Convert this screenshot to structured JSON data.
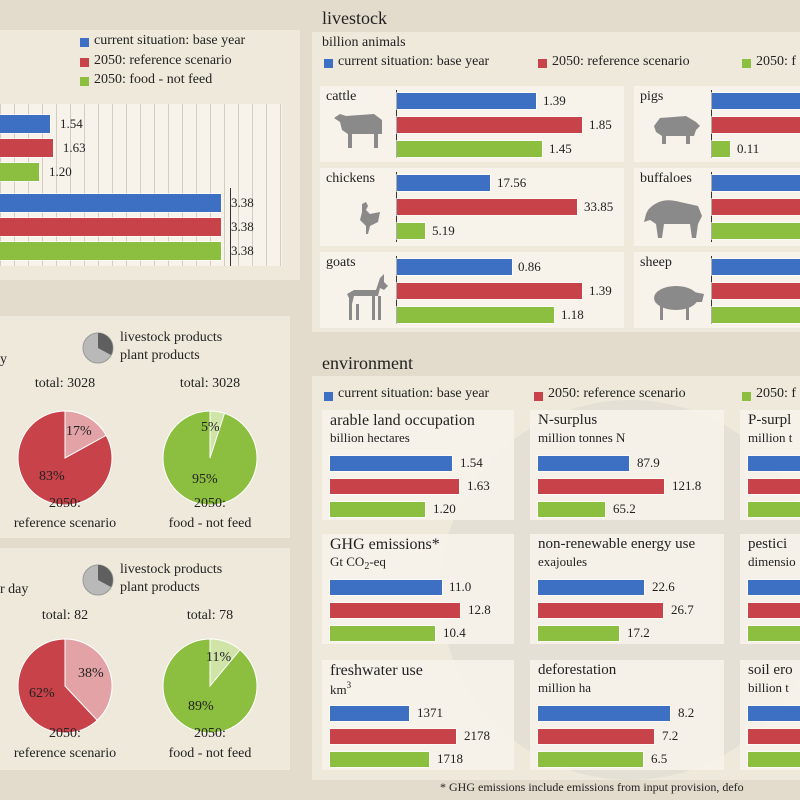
{
  "colors": {
    "blue": "#3d6fc2",
    "red": "#c8424a",
    "green": "#8cbe3f",
    "lightred": "#e3a3a6",
    "lightgreen": "#cfe4a6",
    "dark": "#5f5f5f",
    "light": "#b9b9b9"
  },
  "legend": {
    "base": "current situation: base year",
    "ref": "2050: reference scenario",
    "food": "2050: food - not feed",
    "food_cut": "2050: f"
  },
  "land": {
    "rows": [
      {
        "value": 1.54,
        "label": "1.54"
      },
      {
        "value": 1.63,
        "label": "1.63"
      },
      {
        "value": 1.2,
        "label": "1.20"
      },
      {
        "value": 3.38,
        "label": "3.38"
      },
      {
        "value": 3.38,
        "label": "3.38"
      },
      {
        "value": 3.38,
        "label": "3.38"
      }
    ]
  },
  "livestock": {
    "title": "livestock",
    "unit": "billion animals",
    "animals": [
      {
        "name": "cattle",
        "values": [
          1.39,
          1.85,
          1.45
        ],
        "labels": [
          "1.39",
          "1.85",
          "1.45"
        ]
      },
      {
        "name": "chickens",
        "values": [
          17.56,
          33.85,
          5.19
        ],
        "labels": [
          "17.56",
          "33.85",
          "5.19"
        ]
      },
      {
        "name": "goats",
        "values": [
          0.86,
          1.39,
          1.18
        ],
        "labels": [
          "0.86",
          "1.39",
          "1.18"
        ]
      },
      {
        "name": "pigs",
        "values": [
          null,
          null,
          0.11
        ],
        "labels": [
          "",
          "",
          "0.11"
        ]
      },
      {
        "name": "buffaloes",
        "values": [
          null,
          null,
          null
        ],
        "labels": [
          "",
          "",
          ""
        ]
      },
      {
        "name": "sheep",
        "values": [
          null,
          null,
          null
        ],
        "labels": [
          "",
          "",
          ""
        ]
      }
    ]
  },
  "pies": {
    "legend": {
      "livestock": "livestock products",
      "plant": "plant products"
    },
    "top": {
      "label_left": "y",
      "charts": [
        {
          "total": "total: 3028",
          "livestock": 17,
          "plant": 83,
          "pct_livestock": "17%",
          "pct_plant": "83%",
          "caption1": "2050:",
          "caption2": "reference scenario",
          "scheme": "red"
        },
        {
          "total": "total: 3028",
          "livestock": 5,
          "plant": 95,
          "pct_livestock": "5%",
          "pct_plant": "95%",
          "caption1": "2050:",
          "caption2": "food - not feed",
          "scheme": "green"
        }
      ]
    },
    "bottom": {
      "label_left": "r day",
      "charts": [
        {
          "total": "total: 82",
          "livestock": 38,
          "plant": 62,
          "pct_livestock": "38%",
          "pct_plant": "62%",
          "caption1": "2050:",
          "caption2": "reference scenario",
          "scheme": "red"
        },
        {
          "total": "total: 78",
          "livestock": 11,
          "plant": 89,
          "pct_livestock": "11%",
          "pct_plant": "89%",
          "caption1": "2050:",
          "caption2": "food - not feed",
          "scheme": "green"
        }
      ]
    }
  },
  "environment": {
    "title": "environment",
    "indicators": [
      {
        "title": "arable land occupation",
        "unit": "billion hectares",
        "values": [
          1.54,
          1.63,
          1.2
        ],
        "labels": [
          "1.54",
          "1.63",
          "1.20"
        ],
        "max": 1.9
      },
      {
        "title": "N-surplus",
        "unit": "million tonnes N",
        "values": [
          87.9,
          121.8,
          65.2
        ],
        "labels": [
          "87.9",
          "121.8",
          "65.2"
        ],
        "max": 145
      },
      {
        "title": "P-surpl",
        "unit": "million t",
        "values": [
          null,
          null,
          null
        ],
        "labels": [
          "",
          "",
          ""
        ],
        "max": 1
      },
      {
        "title": "GHG emissions*",
        "unit_main": "Gt CO",
        "unit_sub": "2",
        "unit_tail": "-eq",
        "values": [
          11.0,
          12.8,
          10.4
        ],
        "labels": [
          "11.0",
          "12.8",
          "10.4"
        ],
        "max": 14.8
      },
      {
        "title": "non-renewable energy use",
        "unit": "exajoules",
        "values": [
          22.6,
          26.7,
          17.2
        ],
        "labels": [
          "22.6",
          "26.7",
          "17.2"
        ],
        "max": 32
      },
      {
        "title": "pestici",
        "unit": "dimensio",
        "values": [
          null,
          null,
          null
        ],
        "labels": [
          "",
          "",
          ""
        ],
        "max": 1
      },
      {
        "title": "freshwater use",
        "unit_main": "km",
        "unit_sup": "3",
        "values": [
          1371,
          2178,
          1718
        ],
        "labels": [
          "1371",
          "2178",
          "1718"
        ],
        "max": 2600
      },
      {
        "title": "deforestation",
        "unit": "million ha",
        "values": [
          8.2,
          7.2,
          6.5
        ],
        "labels": [
          "8.2",
          "7.2",
          "6.5"
        ],
        "max": 9.3
      },
      {
        "title": "soil ero",
        "unit": "billion t",
        "values": [
          null,
          null,
          null
        ],
        "labels": [
          "",
          "",
          ""
        ],
        "max": 1
      }
    ],
    "footnote": "* GHG emissions include emissions from input provision, defo"
  }
}
